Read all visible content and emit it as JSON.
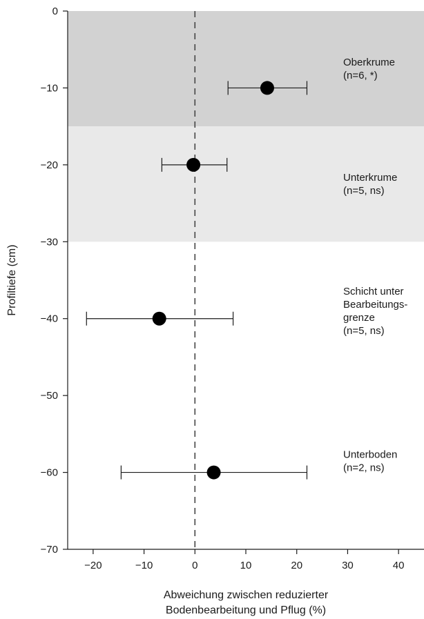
{
  "chart_data": {
    "type": "scatter",
    "title": "",
    "xlabel_lines": [
      "Abweichung zwischen reduzierter",
      "Bodenbearbeitung und Pflug (%)"
    ],
    "ylabel": "Profiltiefe (cm)",
    "xlim": [
      -25,
      45
    ],
    "ylim": [
      -70,
      0
    ],
    "x_ticks": [
      -20,
      -10,
      0,
      10,
      20,
      30,
      40
    ],
    "x_tick_labels": [
      "−20",
      "−10",
      "0",
      "10",
      "20",
      "30",
      "40"
    ],
    "y_ticks": [
      0,
      -10,
      -20,
      -30,
      -40,
      -50,
      -60,
      -70
    ],
    "y_tick_labels": [
      "0",
      "−10",
      "−20",
      "−30",
      "−40",
      "−50",
      "−60",
      "−70"
    ],
    "reference_line": {
      "x": 0,
      "style": "dashed"
    },
    "bands": [
      {
        "y_from": 0,
        "y_to": -15,
        "color": "#d2d2d2"
      },
      {
        "y_from": -15,
        "y_to": -30,
        "color": "#e9e9e9"
      }
    ],
    "points": [
      {
        "y": -10,
        "x": 14.2,
        "xerr_low": 6.5,
        "xerr_high": 22,
        "label_lines": [
          "Oberkrume",
          "(n=6, *)"
        ],
        "label_y": -7.5
      },
      {
        "y": -20,
        "x": -0.3,
        "xerr_low": -6.5,
        "xerr_high": 6.3,
        "label_lines": [
          "Unterkrume",
          "(n=5, ns)"
        ],
        "label_y": -22.5
      },
      {
        "y": -40,
        "x": -7,
        "xerr_low": -21.3,
        "xerr_high": 7.5,
        "label_lines": [
          "Schicht unter",
          "Bearbeitungs-",
          "grenze",
          "(n=5, ns)"
        ],
        "label_y": -39
      },
      {
        "y": -60,
        "x": 3.7,
        "xerr_low": -14.5,
        "xerr_high": 22,
        "label_lines": [
          "Unterboden",
          "(n=2, ns)"
        ],
        "label_y": -58.5
      }
    ],
    "marker_color": "#000000",
    "grid": false
  }
}
